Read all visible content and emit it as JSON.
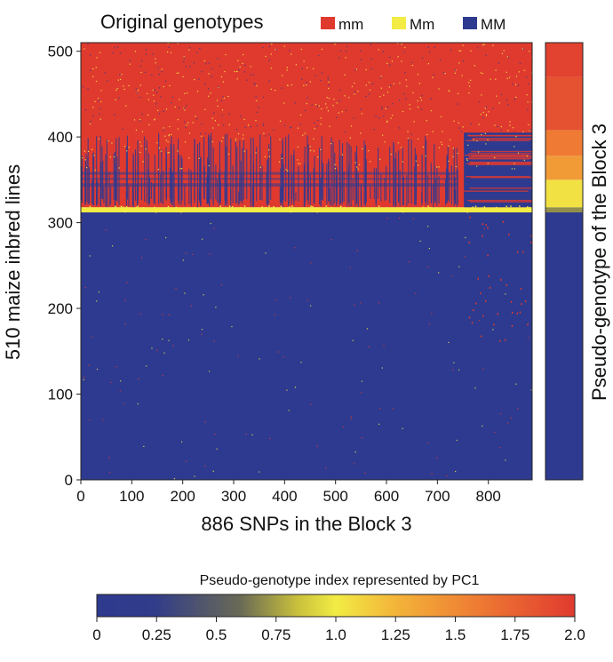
{
  "colors": {
    "mm": "#e03a2f",
    "Mm": "#f2ec44",
    "MM": "#2e3a8f"
  },
  "chart_data": [
    {
      "type": "heatmap",
      "legend": {
        "title": "Original genotypes",
        "entries": [
          {
            "label": "mm",
            "color": "#e03a2f"
          },
          {
            "label": "Mm",
            "color": "#f2ec44"
          },
          {
            "label": "MM",
            "color": "#2e3a8f"
          }
        ]
      },
      "xlabel": "886 SNPs in the Block 3",
      "ylabel": "510 maize inbred lines",
      "xlim": [
        0,
        886
      ],
      "ylim": [
        0,
        510
      ],
      "xticks": [
        0,
        100,
        200,
        300,
        400,
        500,
        600,
        700,
        800
      ],
      "yticks": [
        0,
        100,
        200,
        300,
        400,
        500
      ],
      "n_snps": 886,
      "n_lines": 510,
      "regions": [
        {
          "genotype": "MM",
          "lines": [
            0,
            312
          ],
          "snps": [
            0,
            886
          ]
        },
        {
          "genotype": "Mm",
          "lines": [
            312,
            318
          ],
          "snps": [
            0,
            886
          ]
        },
        {
          "genotype": "mm",
          "lines": [
            318,
            510
          ],
          "snps": [
            0,
            886
          ]
        }
      ]
    },
    {
      "type": "heatmap",
      "ylabel": "Pseudo-genotype of the Block 3",
      "bands": [
        {
          "lines": [
            0,
            312
          ],
          "value": 0.0
        },
        {
          "lines": [
            312,
            318
          ],
          "value": 0.7
        },
        {
          "lines": [
            318,
            350
          ],
          "value": 1.05
        },
        {
          "lines": [
            350,
            378
          ],
          "value": 1.4
        },
        {
          "lines": [
            378,
            408
          ],
          "value": 1.6
        },
        {
          "lines": [
            408,
            470
          ],
          "value": 1.85
        },
        {
          "lines": [
            470,
            510
          ],
          "value": 1.95
        }
      ]
    },
    {
      "type": "colorbar",
      "title": "Pseudo-genotype index represented by PC1",
      "range": [
        0,
        2.0
      ],
      "ticks": [
        "0",
        "0.25",
        "0.5",
        "0.75",
        "1.0",
        "1.25",
        "1.5",
        "1.75",
        "2.0"
      ],
      "tick_values": [
        0,
        0.25,
        0.5,
        0.75,
        1.0,
        1.25,
        1.5,
        1.75,
        2.0
      ],
      "colors": [
        "#2e3a8f",
        "#f2ec44",
        "#e03a2f"
      ]
    }
  ]
}
